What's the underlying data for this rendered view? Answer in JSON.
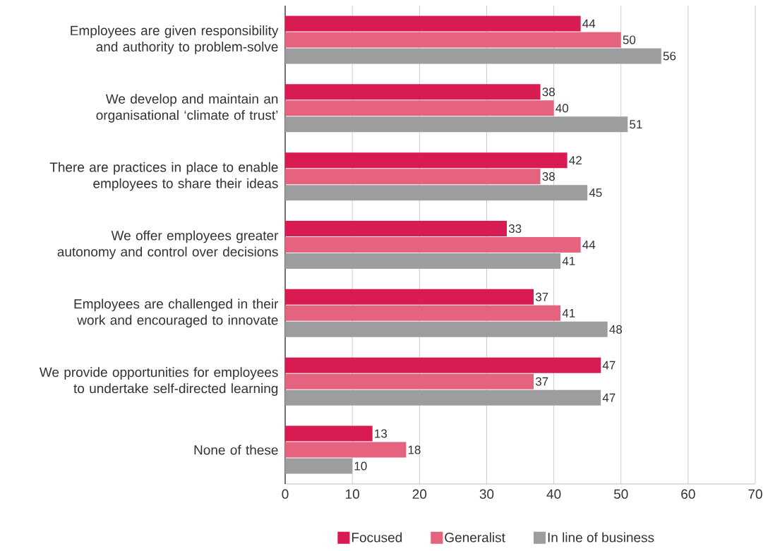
{
  "chart_data": {
    "type": "bar",
    "orientation": "horizontal",
    "categories": [
      "Employees are given responsibility and authority to problem-solve",
      "We develop and maintain an organisational ‘climate of trust’",
      "There are practices in place to enable employees to share their ideas",
      "We offer employees greater autonomy and control over decisions",
      "Employees are challenged in their work and encouraged to innovate",
      "We provide opportunities for employees to undertake self-directed learning",
      "None of these"
    ],
    "series": [
      {
        "name": "Focused",
        "color": "#d81b52",
        "values": [
          44,
          38,
          42,
          33,
          37,
          47,
          13
        ]
      },
      {
        "name": "Generalist",
        "color": "#e5637f",
        "values": [
          50,
          40,
          38,
          44,
          41,
          37,
          18
        ]
      },
      {
        "name": "In line of business",
        "color": "#9d9d9f",
        "values": [
          56,
          51,
          45,
          41,
          48,
          47,
          10
        ]
      }
    ],
    "xlim": [
      0,
      70
    ],
    "xticks": [
      0,
      10,
      20,
      30,
      40,
      50,
      60,
      70
    ],
    "grid": "x",
    "legend": "bottom",
    "data_labels": true
  }
}
